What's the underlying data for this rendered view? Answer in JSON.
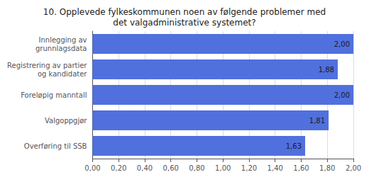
{
  "chart_data": {
    "type": "bar",
    "orientation": "horizontal",
    "title": "10. Opplevede fylkeskommunen noen av følgende problemer med\ndet valgadministrative systemet?",
    "categories": [
      "Overføring til SSB",
      "Valgoppgjør",
      "Foreløpig manntall",
      "Registrering av partier\nog kandidater",
      "Innlegging av\ngrunnlagsdata"
    ],
    "values": [
      1.63,
      1.81,
      2.0,
      1.88,
      2.0
    ],
    "value_labels": [
      "1,63",
      "1,81",
      "2,00",
      "1,88",
      "2,00"
    ],
    "data_labels": true,
    "xlim": [
      0,
      2.0
    ],
    "xticks": [
      {
        "value": 0.0,
        "label": "0,00"
      },
      {
        "value": 0.2,
        "label": "0,20"
      },
      {
        "value": 0.4,
        "label": "0,40"
      },
      {
        "value": 0.6,
        "label": "0,60"
      },
      {
        "value": 0.8,
        "label": "0,80"
      },
      {
        "value": 1.0,
        "label": "1,00"
      },
      {
        "value": 1.2,
        "label": "1,20"
      },
      {
        "value": 1.4,
        "label": "1,40"
      },
      {
        "value": 1.6,
        "label": "1,60"
      },
      {
        "value": 1.8,
        "label": "1,80"
      },
      {
        "value": 2.0,
        "label": "2,00"
      }
    ],
    "grid": true
  }
}
